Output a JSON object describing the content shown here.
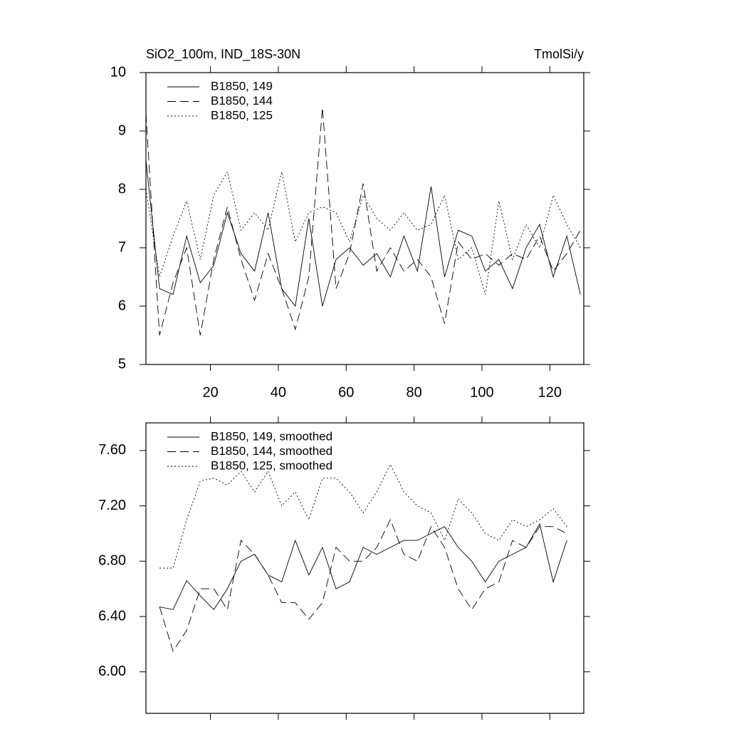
{
  "chart_data": [
    {
      "type": "line",
      "title": "SiO2_100m, IND_18S-30N",
      "units": "TmolSi/y",
      "x": [
        1,
        5,
        9,
        13,
        17,
        21,
        25,
        29,
        33,
        37,
        41,
        45,
        49,
        53,
        57,
        61,
        65,
        69,
        73,
        77,
        81,
        85,
        89,
        93,
        97,
        101,
        105,
        109,
        113,
        117,
        121,
        125,
        129
      ],
      "series": [
        {
          "name": "B1850, 149",
          "color": "#000000",
          "dash": "solid",
          "values": [
            8.5,
            6.3,
            6.2,
            7.2,
            6.4,
            6.7,
            7.6,
            6.9,
            6.6,
            7.6,
            6.3,
            6.0,
            7.5,
            6.0,
            6.8,
            7.0,
            6.7,
            6.9,
            6.5,
            7.2,
            6.6,
            8.05,
            6.5,
            7.3,
            7.2,
            6.6,
            6.8,
            6.3,
            7.0,
            7.4,
            6.5,
            7.2,
            6.2
          ]
        },
        {
          "name": "B1850, 144",
          "color": "#000000",
          "dash": "dashed",
          "values": [
            9.3,
            5.5,
            6.4,
            7.0,
            5.5,
            6.8,
            7.7,
            6.8,
            6.1,
            6.9,
            6.3,
            5.6,
            6.5,
            9.4,
            6.3,
            6.9,
            8.1,
            6.6,
            7.0,
            6.6,
            6.8,
            6.5,
            5.7,
            7.1,
            6.8,
            6.9,
            6.7,
            6.9,
            6.8,
            7.2,
            6.6,
            6.9,
            7.3
          ]
        },
        {
          "name": "B1850, 125",
          "color": "#000000",
          "dash": "dotted",
          "values": [
            8.0,
            6.5,
            7.2,
            7.8,
            6.8,
            7.9,
            8.3,
            7.3,
            7.6,
            7.3,
            8.3,
            7.1,
            7.6,
            7.7,
            7.6,
            7.1,
            7.9,
            7.5,
            7.3,
            7.6,
            7.3,
            7.4,
            7.9,
            6.8,
            7.0,
            6.2,
            7.8,
            6.8,
            7.4,
            7.0,
            7.9,
            7.4,
            7.0
          ]
        }
      ],
      "xlim": [
        1,
        130
      ],
      "xticks": [
        20,
        40,
        60,
        80,
        100,
        120
      ],
      "xtick_labels": true,
      "ylim": [
        5,
        10
      ],
      "yticks": [
        5,
        6,
        7,
        8,
        9,
        10
      ],
      "legend": "upper left"
    },
    {
      "type": "line",
      "x": [
        5,
        9,
        13,
        17,
        21,
        25,
        29,
        33,
        37,
        41,
        45,
        49,
        53,
        57,
        61,
        65,
        69,
        73,
        77,
        81,
        85,
        89,
        93,
        97,
        101,
        105,
        109,
        113,
        117,
        121,
        125
      ],
      "series": [
        {
          "name": "B1850, 149, smoothed",
          "color": "#000000",
          "dash": "solid",
          "values": [
            6.47,
            6.45,
            6.66,
            6.55,
            6.45,
            6.6,
            6.8,
            6.85,
            6.7,
            6.65,
            6.95,
            6.7,
            6.9,
            6.6,
            6.65,
            6.9,
            6.85,
            6.9,
            6.95,
            6.95,
            7.0,
            7.05,
            6.9,
            6.8,
            6.65,
            6.8,
            6.85,
            6.9,
            7.07,
            6.65,
            6.95
          ]
        },
        {
          "name": "B1850, 144, smoothed",
          "color": "#000000",
          "dash": "dashed",
          "values": [
            6.47,
            6.15,
            6.3,
            6.6,
            6.6,
            6.45,
            6.95,
            6.85,
            6.7,
            6.5,
            6.5,
            6.38,
            6.5,
            6.9,
            6.8,
            6.8,
            6.9,
            7.1,
            6.85,
            6.8,
            7.05,
            6.9,
            6.6,
            6.45,
            6.6,
            6.65,
            6.95,
            6.9,
            7.05,
            7.05,
            7.0
          ]
        },
        {
          "name": "B1850, 125, smoothed",
          "color": "#000000",
          "dash": "dotted",
          "values": [
            6.75,
            6.75,
            7.1,
            7.38,
            7.4,
            7.35,
            7.45,
            7.3,
            7.45,
            7.2,
            7.3,
            7.1,
            7.4,
            7.4,
            7.3,
            7.15,
            7.3,
            7.5,
            7.3,
            7.2,
            7.15,
            6.95,
            7.25,
            7.15,
            7.0,
            6.95,
            7.1,
            7.05,
            7.1,
            7.18,
            7.05
          ]
        }
      ],
      "xlim": [
        1,
        130
      ],
      "xticks": [
        20,
        40,
        60,
        80,
        100,
        120
      ],
      "xtick_labels": false,
      "ylim": [
        5.7,
        7.8
      ],
      "yticks": [
        {
          "value": 6.0,
          "label": "6.00"
        },
        {
          "value": 6.4,
          "label": "6.40"
        },
        {
          "value": 6.8,
          "label": "6.80"
        },
        {
          "value": 7.2,
          "label": "7.20"
        },
        {
          "value": 7.6,
          "label": "7.60"
        }
      ],
      "legend": "upper left"
    }
  ]
}
